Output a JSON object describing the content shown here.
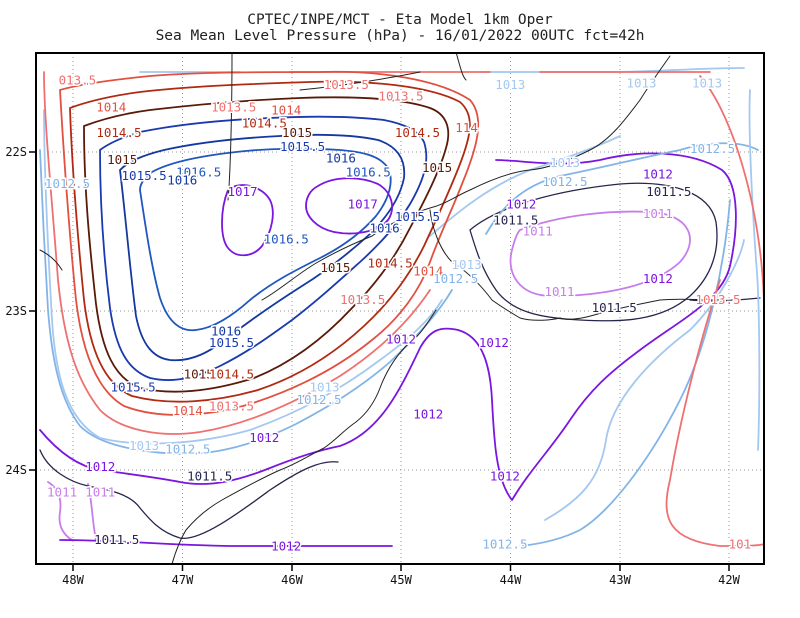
{
  "title": {
    "line1": "CPTEC/INPE/MCT -  Eta Model 1km Oper",
    "line2": "Sea Mean Level Pressure (hPa) - 16/01/2022 00UTC fct=42h"
  },
  "colors": {
    "frame": "#000000",
    "grid": "#9a9a9a",
    "coast": "#222222",
    "p1011": "#c77dea",
    "p1011_5": "#26264d",
    "p1012": "#7a16e0",
    "p1012_5": "#82b4e8",
    "p1013": "#a4c8f0",
    "p1013_5": "#f07070",
    "p1014": "#e25040",
    "p1014_5": "#b02a12",
    "p1015": "#5a1a08",
    "p1015_5": "#1a3ab0",
    "p1016": "#1438a0",
    "p1016_5": "#1f56c0",
    "p1017": "#7a16e0"
  },
  "axes": {
    "x_ticks": [
      "48W",
      "47W",
      "46W",
      "45W",
      "44W",
      "43W",
      "42W"
    ],
    "y_ticks": [
      "22S",
      "23S",
      "24S"
    ]
  },
  "chart_data": {
    "type": "contour-map",
    "variable": "Sea Mean Level Pressure (hPa)",
    "lon_range": [
      -48.3,
      -41.8
    ],
    "lat_range": [
      -24.6,
      -21.45
    ],
    "contour_levels": [
      1011,
      1011.5,
      1012,
      1012.5,
      1013,
      1013.5,
      1014,
      1014.5,
      1015,
      1015.5,
      1016,
      1016.5,
      1017
    ],
    "labels": [
      {
        "text": "013.5",
        "level": 1013.5,
        "lon": -47.96,
        "lat": -21.55
      },
      {
        "text": "1013.5",
        "level": 1013.5,
        "lon": -45.5,
        "lat": -21.58
      },
      {
        "text": "1013.5",
        "level": 1013.5,
        "lon": -45.0,
        "lat": -21.65
      },
      {
        "text": "1013",
        "level": 1013,
        "lon": -44.0,
        "lat": -21.58
      },
      {
        "text": "1013",
        "level": 1013,
        "lon": -42.8,
        "lat": -21.57
      },
      {
        "text": "1013",
        "level": 1013,
        "lon": -42.2,
        "lat": -21.57
      },
      {
        "text": "1014",
        "level": 1014,
        "lon": -47.65,
        "lat": -21.72
      },
      {
        "text": "1013.5",
        "level": 1013.5,
        "lon": -46.53,
        "lat": -21.72
      },
      {
        "text": "1014",
        "level": 1014,
        "lon": -46.05,
        "lat": -21.74
      },
      {
        "text": "1014.5",
        "level": 1014.5,
        "lon": -46.25,
        "lat": -21.82
      },
      {
        "text": "1014.5",
        "level": 1014.5,
        "lon": -47.58,
        "lat": -21.88
      },
      {
        "text": "1015",
        "level": 1015,
        "lon": -45.95,
        "lat": -21.88
      },
      {
        "text": "1014.5",
        "level": 1014.5,
        "lon": -44.85,
        "lat": -21.88
      },
      {
        "text": "114",
        "level": 1014,
        "lon": -44.4,
        "lat": -21.85
      },
      {
        "text": "1015.5",
        "level": 1015.5,
        "lon": -45.9,
        "lat": -21.97
      },
      {
        "text": "1012.5",
        "level": 1012.5,
        "lon": -42.15,
        "lat": -21.98
      },
      {
        "text": "1015",
        "level": 1015,
        "lon": -47.55,
        "lat": -22.05
      },
      {
        "text": "1016",
        "level": 1016,
        "lon": -45.55,
        "lat": -22.04
      },
      {
        "text": "1013",
        "level": 1013,
        "lon": -43.5,
        "lat": -22.07
      },
      {
        "text": "1015.5",
        "level": 1015.5,
        "lon": -47.35,
        "lat": -22.15
      },
      {
        "text": "1016.5",
        "level": 1016.5,
        "lon": -46.85,
        "lat": -22.13
      },
      {
        "text": "1016.5",
        "level": 1016.5,
        "lon": -45.3,
        "lat": -22.13
      },
      {
        "text": "1015",
        "level": 1015,
        "lon": -44.67,
        "lat": -22.1
      },
      {
        "text": "1016",
        "level": 1016,
        "lon": -47.0,
        "lat": -22.18
      },
      {
        "text": "1012",
        "level": 1012,
        "lon": -42.65,
        "lat": -22.14
      },
      {
        "text": "1012.5",
        "level": 1012.5,
        "lon": -48.05,
        "lat": -22.2
      },
      {
        "text": "1012.5",
        "level": 1012.5,
        "lon": -43.5,
        "lat": -22.19
      },
      {
        "text": "1011.5",
        "level": 1011.5,
        "lon": -42.55,
        "lat": -22.25
      },
      {
        "text": "1017",
        "level": 1017,
        "lon": -46.45,
        "lat": -22.25
      },
      {
        "text": "1017",
        "level": 1017,
        "lon": -45.35,
        "lat": -22.33
      },
      {
        "text": "1012",
        "level": 1012,
        "lon": -43.9,
        "lat": -22.33
      },
      {
        "text": "1011",
        "level": 1011,
        "lon": -42.65,
        "lat": -22.39
      },
      {
        "text": "1015.5",
        "level": 1015.5,
        "lon": -44.85,
        "lat": -22.41
      },
      {
        "text": "1011.5",
        "level": 1011.5,
        "lon": -43.95,
        "lat": -22.43
      },
      {
        "text": "1016",
        "level": 1016,
        "lon": -45.15,
        "lat": -22.48
      },
      {
        "text": "1011",
        "level": 1011,
        "lon": -43.75,
        "lat": -22.5
      },
      {
        "text": "1016.5",
        "level": 1016.5,
        "lon": -46.05,
        "lat": -22.55
      },
      {
        "text": "1014.5",
        "level": 1014.5,
        "lon": -45.1,
        "lat": -22.7
      },
      {
        "text": "1015",
        "level": 1015,
        "lon": -45.6,
        "lat": -22.73
      },
      {
        "text": "1014",
        "level": 1014,
        "lon": -44.75,
        "lat": -22.75
      },
      {
        "text": "1013",
        "level": 1013,
        "lon": -44.4,
        "lat": -22.71
      },
      {
        "text": "1012.5",
        "level": 1012.5,
        "lon": -44.5,
        "lat": -22.8
      },
      {
        "text": "1012",
        "level": 1012,
        "lon": -42.65,
        "lat": -22.8
      },
      {
        "text": "1011",
        "level": 1011,
        "lon": -43.55,
        "lat": -22.88
      },
      {
        "text": "1013.5",
        "level": 1013.5,
        "lon": -45.35,
        "lat": -22.93
      },
      {
        "text": "1011.5",
        "level": 1011.5,
        "lon": -43.05,
        "lat": -22.98
      },
      {
        "text": "1013.5",
        "level": 1013.5,
        "lon": -42.1,
        "lat": -22.93
      },
      {
        "text": "1016",
        "level": 1016,
        "lon": -46.6,
        "lat": -23.13
      },
      {
        "text": "1015.5",
        "level": 1015.5,
        "lon": -46.55,
        "lat": -23.2
      },
      {
        "text": "1012",
        "level": 1012,
        "lon": -45.0,
        "lat": -23.18
      },
      {
        "text": "1012",
        "level": 1012,
        "lon": -44.15,
        "lat": -23.2
      },
      {
        "text": "1015",
        "level": 1015,
        "lon": -46.85,
        "lat": -23.4
      },
      {
        "text": "1014.5",
        "level": 1014.5,
        "lon": -46.55,
        "lat": -23.4
      },
      {
        "text": "1015.5",
        "level": 1015.5,
        "lon": -47.45,
        "lat": -23.48
      },
      {
        "text": "1013",
        "level": 1013,
        "lon": -45.7,
        "lat": -23.48
      },
      {
        "text": "1012.5",
        "level": 1012.5,
        "lon": -45.75,
        "lat": -23.56
      },
      {
        "text": "1014",
        "level": 1014,
        "lon": -46.95,
        "lat": -23.63
      },
      {
        "text": "1013.5",
        "level": 1013.5,
        "lon": -46.55,
        "lat": -23.6
      },
      {
        "text": "1012",
        "level": 1012,
        "lon": -44.75,
        "lat": -23.65
      },
      {
        "text": "1012",
        "level": 1012,
        "lon": -46.25,
        "lat": -23.8
      },
      {
        "text": "1013",
        "level": 1013,
        "lon": -47.35,
        "lat": -23.85
      },
      {
        "text": "1012.5",
        "level": 1012.5,
        "lon": -46.95,
        "lat": -23.87
      },
      {
        "text": "1012",
        "level": 1012,
        "lon": -47.75,
        "lat": -23.98
      },
      {
        "text": "1011.5",
        "level": 1011.5,
        "lon": -46.75,
        "lat": -24.04
      },
      {
        "text": "1012",
        "level": 1012,
        "lon": -44.05,
        "lat": -24.04
      },
      {
        "text": "1011",
        "level": 1011,
        "lon": -48.1,
        "lat": -24.14
      },
      {
        "text": "1011",
        "level": 1011,
        "lon": -47.75,
        "lat": -24.14
      },
      {
        "text": "1011.5",
        "level": 1011.5,
        "lon": -47.6,
        "lat": -24.44
      },
      {
        "text": "1012",
        "level": 1012,
        "lon": -46.05,
        "lat": -24.48
      },
      {
        "text": "1012.5",
        "level": 1012.5,
        "lon": -44.05,
        "lat": -24.47
      },
      {
        "text": "101",
        "level": 1013.5,
        "lon": -41.9,
        "lat": -24.47
      }
    ]
  }
}
